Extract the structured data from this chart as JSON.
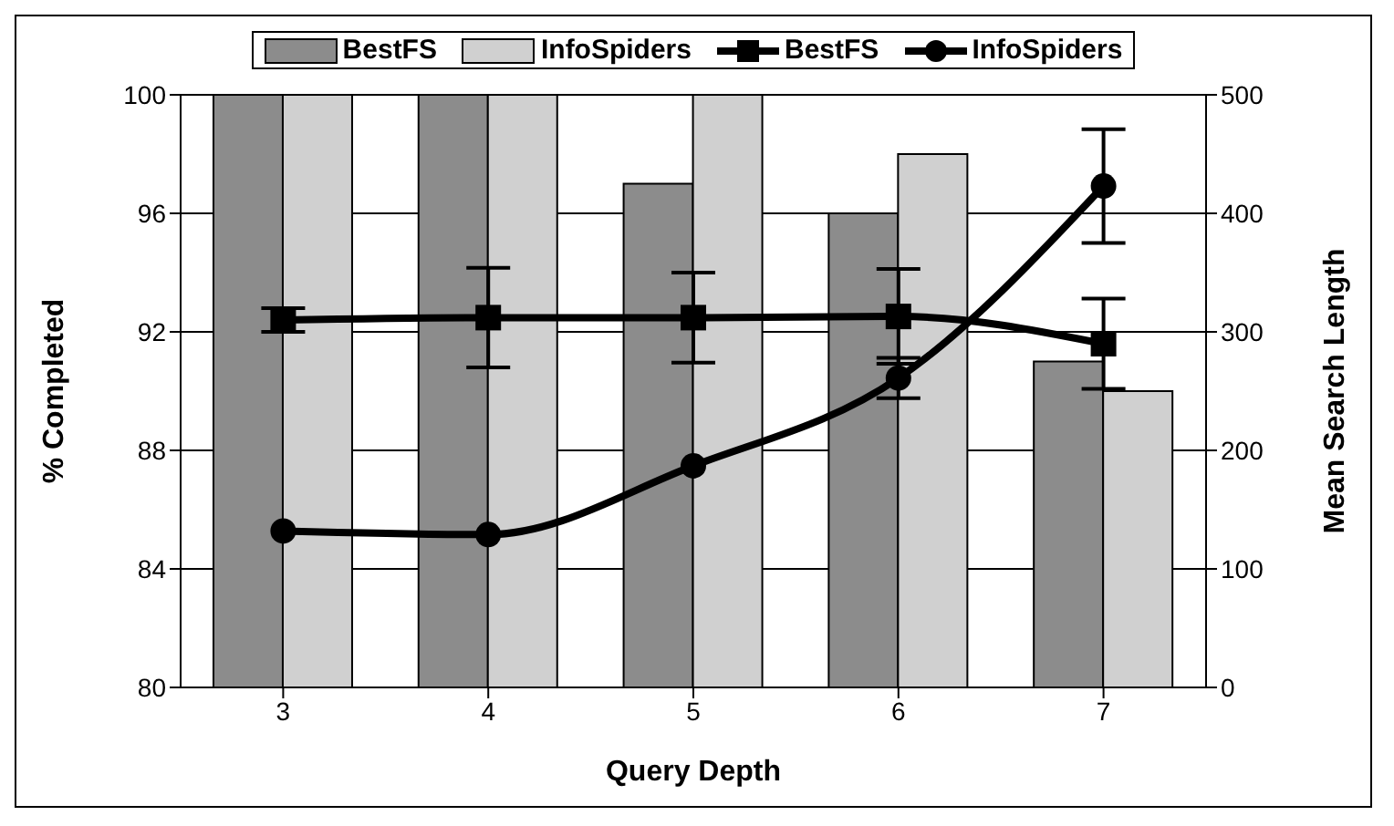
{
  "chart_data": {
    "type": "bar",
    "xlabel": "Query Depth",
    "ylabel": "% Completed",
    "y2label": "Mean Search Length",
    "categories": [
      "3",
      "4",
      "5",
      "6",
      "7"
    ],
    "series": [
      {
        "name": "BestFS",
        "color": "#8c8c8c",
        "values": [
          100,
          100,
          97,
          96,
          91
        ]
      },
      {
        "name": "InfoSpiders",
        "color": "#d0d0d0",
        "values": [
          100,
          100,
          100,
          98,
          90
        ]
      },
      {
        "name": "BestFS",
        "type": "line",
        "axis": "y2",
        "color": "#000000",
        "marker": "square",
        "values": [
          310,
          312,
          312,
          313,
          290
        ],
        "errors": [
          10,
          42,
          38,
          40,
          38
        ]
      },
      {
        "name": "InfoSpiders",
        "type": "line",
        "axis": "y2",
        "color": "#000000",
        "marker": "circle",
        "values": [
          132,
          129,
          187,
          261,
          423
        ],
        "errors": [
          null,
          null,
          null,
          17,
          48
        ]
      }
    ],
    "ylim": [
      80,
      100
    ],
    "yticks": [
      80,
      84,
      88,
      92,
      96,
      100
    ],
    "y2lim": [
      0,
      500
    ],
    "y2ticks": [
      0,
      100,
      200,
      300,
      400,
      500
    ],
    "grid": "y",
    "legend": "top"
  }
}
